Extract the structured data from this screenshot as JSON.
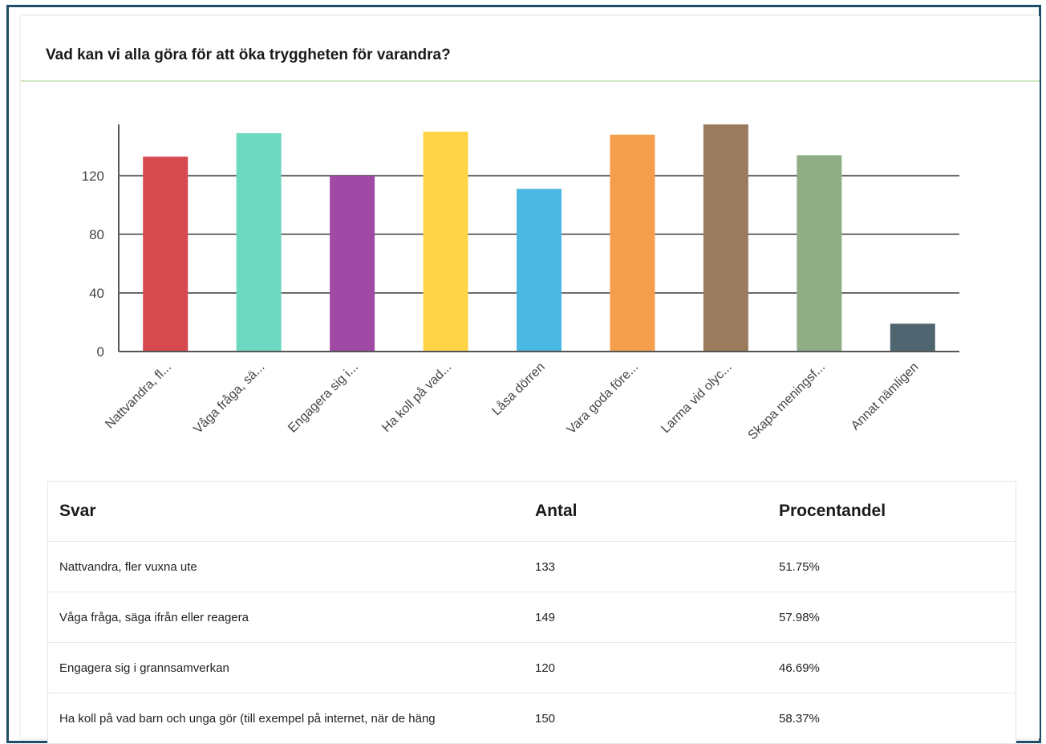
{
  "question": "Vad kan vi alla göra för att öka tryggheten för varandra?",
  "chart_data": {
    "type": "bar",
    "title": "Vad kan vi alla göra för att öka tryggheten för varandra?",
    "categories": [
      "Nattvandra, fl...",
      "Våga fråga, sä...",
      "Engagera sig i...",
      "Ha koll på vad...",
      "Låsa dörren",
      "Vara goda före...",
      "Larma vid olyc...",
      "Skapa meningsf...",
      "Annat nämligen"
    ],
    "values": [
      133,
      149,
      120,
      150,
      111,
      148,
      155,
      134,
      19
    ],
    "colors": [
      "#d64a4f",
      "#6dd9c0",
      "#a04aa6",
      "#ffd447",
      "#4ab8e0",
      "#f59e4c",
      "#9b7b5e",
      "#8fae86",
      "#4f6670"
    ],
    "yticks": [
      "0",
      "40",
      "80",
      "120"
    ],
    "ylim": [
      0,
      155
    ],
    "grid": true,
    "xlabel": "",
    "ylabel": ""
  },
  "table": {
    "headers": [
      "Svar",
      "Antal",
      "Procentandel"
    ],
    "rows": [
      [
        "Nattvandra, fler vuxna ute",
        "133",
        "51.75%"
      ],
      [
        "Våga fråga, säga ifrån eller reagera",
        "149",
        "57.98%"
      ],
      [
        "Engagera sig i grannsamverkan",
        "120",
        "46.69%"
      ],
      [
        "Ha koll på vad barn och unga gör (till exempel på internet, när de häng",
        "150",
        "58.37%"
      ]
    ]
  }
}
